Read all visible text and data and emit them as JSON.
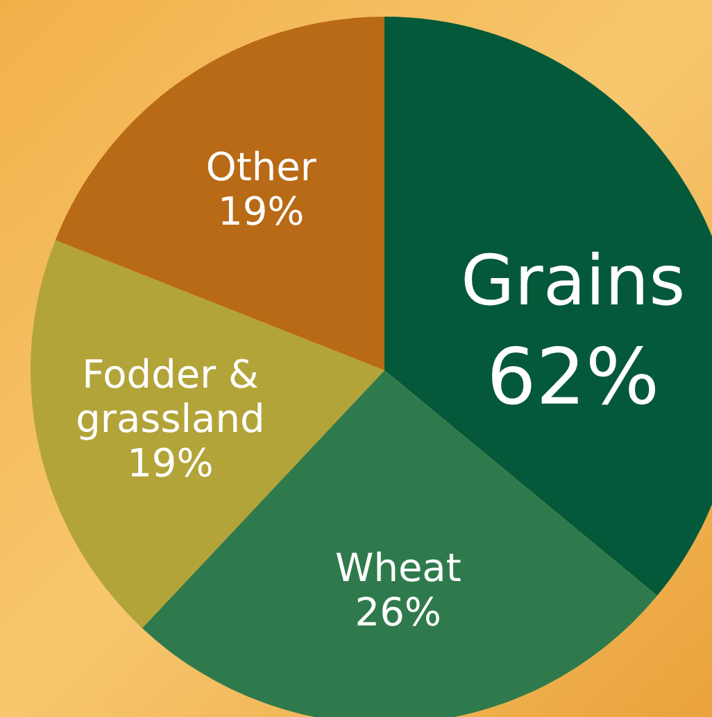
{
  "chart_data": {
    "type": "pie",
    "categories": [
      null,
      "Wheat",
      "Fodder & grassland",
      "Other"
    ],
    "values": [
      36,
      26,
      19,
      19
    ],
    "colors": [
      "#04593a",
      "#2f7a4c",
      "#b3a43a",
      "#b96a16"
    ],
    "value_labels": [
      null,
      "26%",
      "19%",
      "19%"
    ],
    "annotations": [
      "Grains",
      "62%"
    ]
  }
}
